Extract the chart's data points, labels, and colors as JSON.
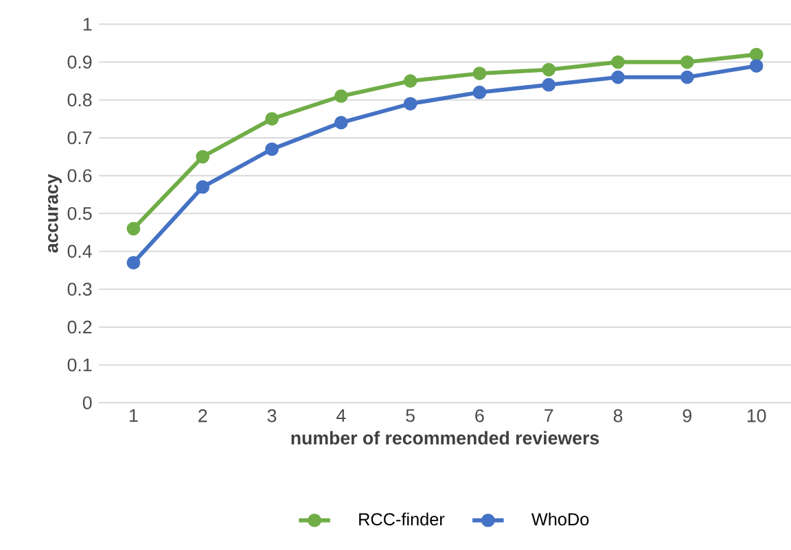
{
  "chart_data": {
    "type": "line",
    "xlabel": "number of recommended reviewers",
    "ylabel": "accuracy",
    "categories": [
      "1",
      "2",
      "3",
      "4",
      "5",
      "6",
      "7",
      "8",
      "9",
      "10"
    ],
    "series": [
      {
        "name": "RCC-finder",
        "color": "#70ad47",
        "values": [
          0.46,
          0.65,
          0.75,
          0.81,
          0.85,
          0.87,
          0.88,
          0.9,
          0.9,
          0.92
        ]
      },
      {
        "name": "WhoDo",
        "color": "#4472c4",
        "values": [
          0.37,
          0.57,
          0.67,
          0.74,
          0.79,
          0.82,
          0.84,
          0.86,
          0.86,
          0.89
        ]
      }
    ],
    "ylim": [
      0,
      1
    ],
    "yticks": [
      0,
      0.1,
      0.2,
      0.3,
      0.4,
      0.5,
      0.6,
      0.7,
      0.8,
      0.9,
      1
    ],
    "grid": "y",
    "legend": "bottom",
    "marker": "circle",
    "line_style": "solid"
  }
}
